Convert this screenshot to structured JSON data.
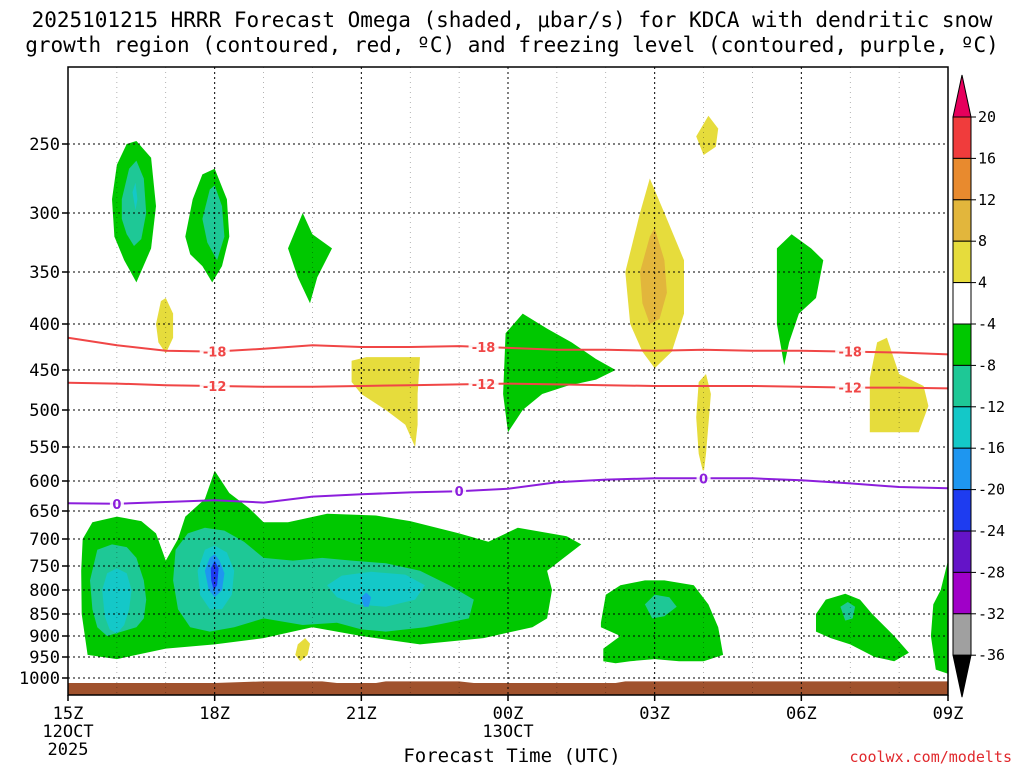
{
  "chart_data": {
    "type": "contour",
    "title": "2025101215 HRRR Forecast Omega (shaded, μbar/s) for KDCA with dendritic snow",
    "title_line2": "growth region (contoured, red, ºC) and freezing level (contoured, purple, ºC)",
    "xlabel": "Forecast Time (UTC)",
    "ylabel": "",
    "credit": "coolwx.com/modelts",
    "x_ticks": [
      {
        "hour": 0,
        "label": "15Z",
        "sub1": "12OCT",
        "sub2": "2025"
      },
      {
        "hour": 3,
        "label": "18Z"
      },
      {
        "hour": 6,
        "label": "21Z"
      },
      {
        "hour": 9,
        "label": "00Z",
        "sub1": "13OCT"
      },
      {
        "hour": 12,
        "label": "03Z"
      },
      {
        "hour": 15,
        "label": "06Z"
      },
      {
        "hour": 18,
        "label": "09Z"
      }
    ],
    "xlim": [
      0,
      18
    ],
    "y_ticks": [
      250,
      300,
      350,
      400,
      450,
      500,
      550,
      600,
      650,
      700,
      750,
      800,
      850,
      900,
      950,
      1000
    ],
    "ylim_hPa": [
      1030,
      200
    ],
    "colorbar": {
      "labels": [
        "20",
        "16",
        "12",
        "8",
        "4",
        "-4",
        "-8",
        "-12",
        "-16",
        "-20",
        "-24",
        "-28",
        "-32",
        "-36"
      ],
      "colors": [
        "#e6005c",
        "#f03c3c",
        "#e88a2e",
        "#e2b63c",
        "#e6dc3c",
        "#ffffff",
        "#00c800",
        "#1ec896",
        "#14c8c8",
        "#1e96f0",
        "#1e3cf0",
        "#6414c8",
        "#a000c8",
        "#a0a0a0",
        "#000000"
      ]
    },
    "series": [
      {
        "name": "dendritic -18 C",
        "color": "#f04646",
        "label": "-18",
        "points": [
          [
            0,
            415
          ],
          [
            1,
            423
          ],
          [
            2,
            429
          ],
          [
            3,
            430
          ],
          [
            4,
            427
          ],
          [
            5,
            423
          ],
          [
            6,
            425
          ],
          [
            7,
            425
          ],
          [
            8,
            424
          ],
          [
            9,
            426
          ],
          [
            10,
            428
          ],
          [
            11,
            428
          ],
          [
            12,
            429
          ],
          [
            13,
            428
          ],
          [
            14,
            429
          ],
          [
            15,
            429
          ],
          [
            16,
            430
          ],
          [
            17,
            431
          ],
          [
            18,
            433
          ]
        ]
      },
      {
        "name": "dendritic -12 C",
        "color": "#f04646",
        "label": "-12",
        "points": [
          [
            0,
            466
          ],
          [
            1,
            467
          ],
          [
            2,
            469
          ],
          [
            3,
            470
          ],
          [
            4,
            471
          ],
          [
            5,
            471
          ],
          [
            6,
            470
          ],
          [
            7,
            469
          ],
          [
            8,
            468
          ],
          [
            9,
            467
          ],
          [
            10,
            468
          ],
          [
            11,
            469
          ],
          [
            12,
            470
          ],
          [
            13,
            470
          ],
          [
            14,
            470
          ],
          [
            15,
            471
          ],
          [
            16,
            472
          ],
          [
            17,
            472
          ],
          [
            18,
            473
          ]
        ]
      },
      {
        "name": "freezing level 0 C",
        "color": "#8c1edc",
        "label": "0",
        "points": [
          [
            0,
            637
          ],
          [
            1,
            638
          ],
          [
            2,
            635
          ],
          [
            3,
            632
          ],
          [
            4,
            636
          ],
          [
            5,
            626
          ],
          [
            6,
            622
          ],
          [
            7,
            619
          ],
          [
            8,
            617
          ],
          [
            9,
            613
          ],
          [
            10,
            602
          ],
          [
            11,
            598
          ],
          [
            12,
            596
          ],
          [
            13,
            596
          ],
          [
            14,
            596
          ],
          [
            15,
            599
          ],
          [
            16,
            604
          ],
          [
            17,
            610
          ],
          [
            18,
            612
          ]
        ]
      }
    ],
    "omega_regions": [
      {
        "level": "-4",
        "x_center": 1.4,
        "p_center": 300
      },
      {
        "level": "-12",
        "x_center": 3.0,
        "p_center": 760
      },
      {
        "level": "-20",
        "x_center": 3.0,
        "p_center": 760
      },
      {
        "level": "8",
        "x_center": 12.0,
        "p_center": 350
      },
      {
        "level": "-4",
        "x_center": 12.0,
        "p_center": 840
      }
    ],
    "ground_color": "#a0522d"
  }
}
